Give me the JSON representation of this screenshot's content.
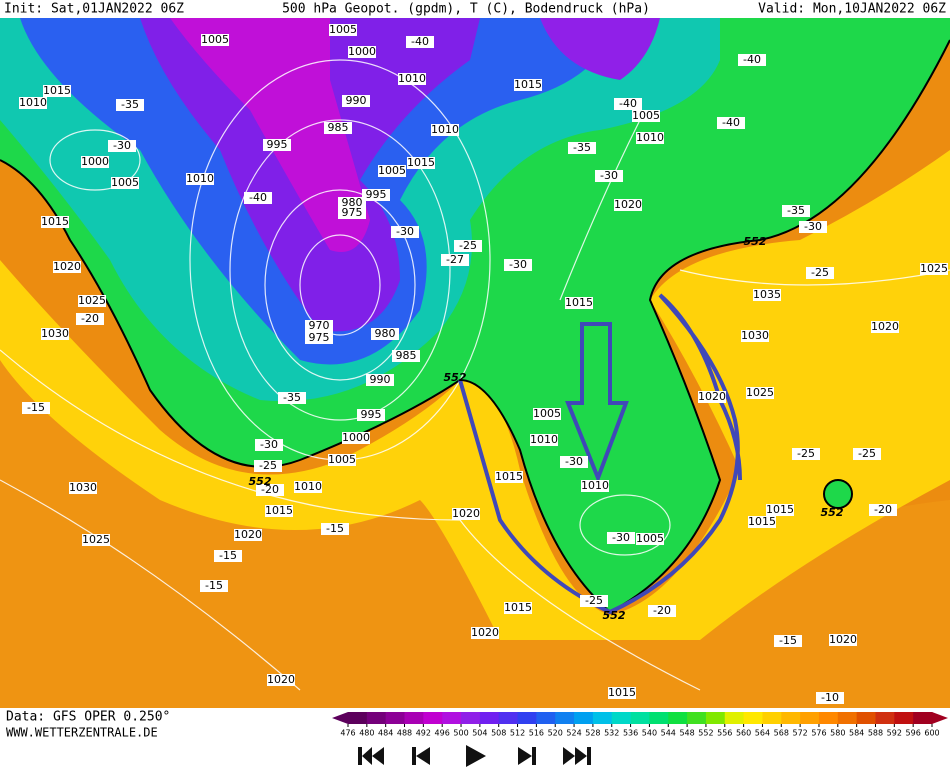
{
  "header": {
    "init": "Init: Sat,01JAN2022 06Z",
    "title": "500 hPa Geopot. (gpdm), T (C), Bodendruck (hPa)",
    "valid": "Valid: Mon,10JAN2022 06Z"
  },
  "map_labels": [
    1005,
    1005,
    1000,
    1010,
    1015,
    -40,
    1015,
    -35,
    1010,
    -30,
    1000,
    1005,
    1010,
    990,
    985,
    995,
    -40,
    980,
    975,
    995,
    1005,
    1015,
    1010,
    -30,
    -25,
    -27,
    1015,
    1020,
    1025,
    -20,
    1030,
    970,
    975,
    980,
    985,
    990,
    -35,
    995,
    1000,
    -30,
    -25,
    -20,
    1005,
    1010,
    1015,
    -15,
    1020,
    -15,
    -15,
    -15,
    1030,
    1025,
    1020,
    1015,
    1020,
    1005,
    1010,
    -30,
    1010,
    -30,
    1005,
    -30,
    1015,
    -35,
    -30,
    1020,
    -40,
    1005,
    1010,
    -40,
    -40,
    -35,
    -30,
    -25,
    1035,
    1030,
    1020,
    1025,
    1020,
    1025,
    -25,
    -25,
    1015,
    1015,
    -20,
    -25,
    1015,
    -20,
    1020,
    -15,
    1020,
    1015,
    -10,
    552,
    552,
    552,
    552,
    552
  ],
  "colorbar": {
    "ticks": [
      476,
      480,
      484,
      488,
      492,
      496,
      500,
      504,
      508,
      512,
      516,
      520,
      524,
      528,
      532,
      536,
      540,
      544,
      548,
      552,
      556,
      560,
      564,
      568,
      572,
      576,
      580,
      584,
      588,
      592,
      596,
      600
    ],
    "colors": [
      "#5c005c",
      "#74007a",
      "#8c0096",
      "#a800b4",
      "#c000d0",
      "#b010e0",
      "#9020e8",
      "#7020f0",
      "#5030f0",
      "#3040f0",
      "#2060f0",
      "#1080f0",
      "#00a0f0",
      "#00c0e8",
      "#00d8c8",
      "#00e0a0",
      "#00e070",
      "#10e040",
      "#40e020",
      "#80e800",
      "#e0f000",
      "#ffe800",
      "#ffd000",
      "#ffb800",
      "#ffa000",
      "#ff8800",
      "#f07000",
      "#e05000",
      "#d03010",
      "#c01010",
      "#a00020"
    ]
  },
  "footer": {
    "source": "Data: GFS OPER 0.250°",
    "site": "WWW.WETTERZENTRALE.DE"
  }
}
